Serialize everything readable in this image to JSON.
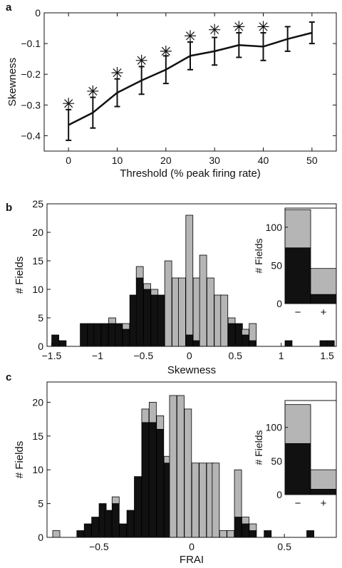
{
  "colors": {
    "black": "#111111",
    "gray": "#b5b5b5",
    "axis": "#111111"
  },
  "chart_data": [
    {
      "panel": "a",
      "type": "line",
      "xlabel": "Threshold (% peak firing rate)",
      "ylabel": "Skewness",
      "xlim": [
        -5,
        55
      ],
      "ylim": [
        -0.45,
        0.0
      ],
      "xticks": [
        0,
        10,
        20,
        30,
        40,
        50
      ],
      "yticks": [
        0,
        -0.1,
        -0.2,
        -0.3,
        -0.4
      ],
      "ytick_labels": [
        "0",
        "-0.1",
        "-0.2",
        "-0.3",
        "-0.4"
      ],
      "x": [
        0,
        5,
        10,
        15,
        20,
        25,
        30,
        35,
        40,
        45,
        50
      ],
      "y": [
        -0.365,
        -0.325,
        -0.26,
        -0.22,
        -0.185,
        -0.14,
        -0.125,
        -0.105,
        -0.11,
        -0.085,
        -0.065
      ],
      "err": [
        0.05,
        0.05,
        0.045,
        0.045,
        0.045,
        0.045,
        0.045,
        0.04,
        0.045,
        0.04,
        0.035
      ],
      "asterisks": [
        {
          "x": 0,
          "y": -0.295
        },
        {
          "x": 5,
          "y": -0.255
        },
        {
          "x": 10,
          "y": -0.195
        },
        {
          "x": 15,
          "y": -0.155
        },
        {
          "x": 20,
          "y": -0.125
        },
        {
          "x": 25,
          "y": -0.075
        },
        {
          "x": 30,
          "y": -0.055
        },
        {
          "x": 35,
          "y": -0.045
        },
        {
          "x": 40,
          "y": -0.045
        }
      ],
      "zero_line": true
    },
    {
      "panel": "b",
      "type": "bar",
      "stacked": true,
      "xlabel": "Skewness",
      "ylabel": "# Fields",
      "xlim": [
        -1.55,
        1.6
      ],
      "ylim": [
        0,
        25
      ],
      "xticks": [
        -1.5,
        -1,
        -0.5,
        0,
        0.5,
        1,
        1.5
      ],
      "xtick_labels": [
        "-1.5",
        "-1",
        "-0.5",
        "0",
        "0.5",
        "1",
        "1.5"
      ],
      "yticks": [
        0,
        5,
        10,
        15,
        20,
        25
      ],
      "bin_width": 0.077,
      "bins": [
        {
          "x": -1.46,
          "black": 2,
          "gray": 0
        },
        {
          "x": -1.38,
          "black": 1,
          "gray": 0
        },
        {
          "x": -1.15,
          "black": 4,
          "gray": 0
        },
        {
          "x": -1.07,
          "black": 4,
          "gray": 0
        },
        {
          "x": -1.0,
          "black": 4,
          "gray": 0
        },
        {
          "x": -0.92,
          "black": 4,
          "gray": 0
        },
        {
          "x": -0.84,
          "black": 4,
          "gray": 1
        },
        {
          "x": -0.77,
          "black": 4,
          "gray": 0
        },
        {
          "x": -0.69,
          "black": 3,
          "gray": 1
        },
        {
          "x": -0.61,
          "black": 9,
          "gray": 0
        },
        {
          "x": -0.54,
          "black": 12,
          "gray": 2
        },
        {
          "x": -0.46,
          "black": 10,
          "gray": 1
        },
        {
          "x": -0.38,
          "black": 9,
          "gray": 1
        },
        {
          "x": -0.31,
          "black": 9,
          "gray": 0
        },
        {
          "x": -0.23,
          "black": 0,
          "gray": 15
        },
        {
          "x": -0.15,
          "black": 0,
          "gray": 12
        },
        {
          "x": -0.08,
          "black": 0,
          "gray": 12
        },
        {
          "x": 0.0,
          "black": 2,
          "gray": 21
        },
        {
          "x": 0.08,
          "black": 1,
          "gray": 11
        },
        {
          "x": 0.15,
          "black": 0,
          "gray": 16
        },
        {
          "x": 0.23,
          "black": 0,
          "gray": 12
        },
        {
          "x": 0.31,
          "black": 0,
          "gray": 9
        },
        {
          "x": 0.38,
          "black": 0,
          "gray": 9
        },
        {
          "x": 0.46,
          "black": 4,
          "gray": 1
        },
        {
          "x": 0.54,
          "black": 4,
          "gray": 0
        },
        {
          "x": 0.61,
          "black": 2,
          "gray": 1
        },
        {
          "x": 0.69,
          "black": 1,
          "gray": 3
        },
        {
          "x": 1.08,
          "black": 1,
          "gray": 0
        },
        {
          "x": 1.46,
          "black": 1,
          "gray": 0
        },
        {
          "x": 1.54,
          "black": 1,
          "gray": 0
        }
      ],
      "inset": {
        "ylabel": "# Fields",
        "ylim": [
          0,
          125
        ],
        "yticks": [
          0,
          50,
          100
        ],
        "categories": [
          "−",
          "+"
        ],
        "black": [
          73,
          12
        ],
        "gray": [
          50,
          34
        ]
      }
    },
    {
      "panel": "c",
      "type": "bar",
      "stacked": true,
      "xlabel": "FRAI",
      "ylabel": "# Fields",
      "xlim": [
        -0.78,
        0.78
      ],
      "ylim": [
        0,
        23
      ],
      "xticks": [
        -0.5,
        0,
        0.5
      ],
      "xtick_labels": [
        "-0.5",
        "0",
        "0.5"
      ],
      "yticks": [
        0,
        5,
        10,
        15,
        20
      ],
      "bin_width": 0.0385,
      "bins": [
        {
          "x": -0.73,
          "black": 0,
          "gray": 1
        },
        {
          "x": -0.6,
          "black": 1,
          "gray": 0
        },
        {
          "x": -0.56,
          "black": 2,
          "gray": 0
        },
        {
          "x": -0.52,
          "black": 3,
          "gray": 0
        },
        {
          "x": -0.48,
          "black": 5,
          "gray": 0
        },
        {
          "x": -0.45,
          "black": 4,
          "gray": 0
        },
        {
          "x": -0.41,
          "black": 5,
          "gray": 1
        },
        {
          "x": -0.37,
          "black": 2,
          "gray": 0
        },
        {
          "x": -0.33,
          "black": 4,
          "gray": 0
        },
        {
          "x": -0.29,
          "black": 9,
          "gray": 0
        },
        {
          "x": -0.25,
          "black": 17,
          "gray": 2
        },
        {
          "x": -0.21,
          "black": 17,
          "gray": 3
        },
        {
          "x": -0.17,
          "black": 16,
          "gray": 2
        },
        {
          "x": -0.13,
          "black": 11,
          "gray": 1
        },
        {
          "x": -0.1,
          "black": 0,
          "gray": 21
        },
        {
          "x": -0.06,
          "black": 0,
          "gray": 21
        },
        {
          "x": -0.02,
          "black": 0,
          "gray": 19
        },
        {
          "x": 0.02,
          "black": 0,
          "gray": 11
        },
        {
          "x": 0.06,
          "black": 0,
          "gray": 11
        },
        {
          "x": 0.1,
          "black": 0,
          "gray": 11
        },
        {
          "x": 0.13,
          "black": 0,
          "gray": 11
        },
        {
          "x": 0.17,
          "black": 0,
          "gray": 1
        },
        {
          "x": 0.21,
          "black": 0,
          "gray": 1
        },
        {
          "x": 0.25,
          "black": 3,
          "gray": 7
        },
        {
          "x": 0.29,
          "black": 2,
          "gray": 1
        },
        {
          "x": 0.33,
          "black": 1,
          "gray": 1
        },
        {
          "x": 0.41,
          "black": 1,
          "gray": 0
        },
        {
          "x": 0.64,
          "black": 1,
          "gray": 0
        }
      ],
      "inset": {
        "ylabel": "# Fields",
        "ylim": [
          0,
          140
        ],
        "yticks": [
          0,
          50,
          100
        ],
        "categories": [
          "−",
          "+"
        ],
        "black": [
          76,
          8
        ],
        "gray": [
          58,
          29
        ]
      }
    }
  ]
}
